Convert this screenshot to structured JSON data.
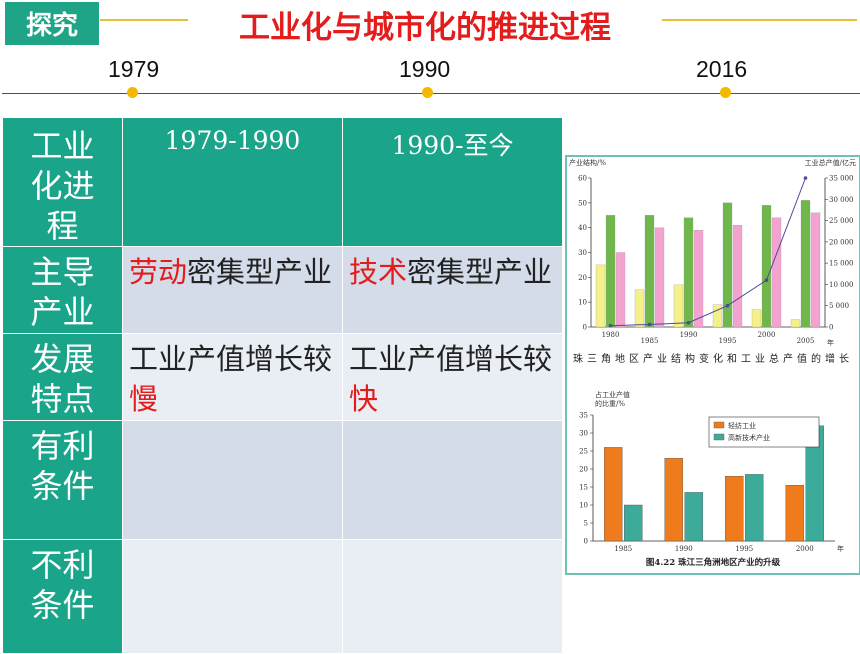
{
  "header": {
    "tag": "探究",
    "title": "工业化与城市化的推进过程"
  },
  "timeline": {
    "years": [
      "1979",
      "1990",
      "2016"
    ]
  },
  "table": {
    "header": {
      "row_label": "工业化进程",
      "col1": "1979-1990",
      "col2": "1990-至今"
    },
    "rows": [
      {
        "label": "主导产业",
        "c1_hl": "劳动",
        "c1_rest": "密集型产业",
        "c2_hl": "技术",
        "c2_rest": "密集型产业"
      },
      {
        "label": "发展特点",
        "c1_pre": "工业产值增长较",
        "c1_hl": "慢",
        "c2_pre": "工业产值增长较",
        "c2_hl": "快"
      },
      {
        "label": "有利条件"
      },
      {
        "label": "不利条件"
      }
    ]
  },
  "chart_data": [
    {
      "type": "bar",
      "title": "珠三角地区产业结构变化和工业总产值的增长",
      "ylabel": "产业结构/%",
      "y2label": "工业总产值/亿元",
      "xunit": "年",
      "categories": [
        "1980",
        "1985",
        "1990",
        "1995",
        "2000",
        "2005"
      ],
      "ylim": [
        0,
        60
      ],
      "y2lim": [
        0,
        35000
      ],
      "yticks": [
        "0",
        "10",
        "20",
        "30",
        "40",
        "50",
        "60"
      ],
      "y2ticks": [
        "0",
        "5 000",
        "10 000",
        "15 000",
        "20 000",
        "25 000",
        "30 000",
        "35 000"
      ],
      "series": [
        {
          "kind": "bar",
          "color": "#f4f08a",
          "values": [
            25,
            15,
            17,
            9,
            7,
            3
          ]
        },
        {
          "kind": "bar",
          "color": "#6fb64b",
          "values": [
            45,
            45,
            44,
            50,
            49,
            51
          ]
        },
        {
          "kind": "bar",
          "color": "#f4a3d0",
          "values": [
            30,
            40,
            39,
            41,
            44,
            46
          ]
        },
        {
          "kind": "line",
          "axis": "right",
          "color": "#4b4b9a",
          "values": [
            300,
            600,
            1000,
            5000,
            11000,
            35000
          ]
        }
      ]
    },
    {
      "type": "bar",
      "title": "图4.22 珠江三角洲地区产业的升级",
      "ylabel": "占工业产值的比重/%",
      "xunit": "年",
      "categories": [
        "1985",
        "1990",
        "1995",
        "2000"
      ],
      "ylim": [
        0,
        35
      ],
      "yticks": [
        "0",
        "5",
        "10",
        "15",
        "20",
        "25",
        "30",
        "35"
      ],
      "series": [
        {
          "name": "轻纺工业",
          "color": "#f07b1c",
          "values": [
            26,
            23,
            18,
            15.5
          ]
        },
        {
          "name": "高新技术产业",
          "color": "#3dab9a",
          "values": [
            10,
            13.5,
            18.5,
            32
          ]
        }
      ]
    }
  ]
}
